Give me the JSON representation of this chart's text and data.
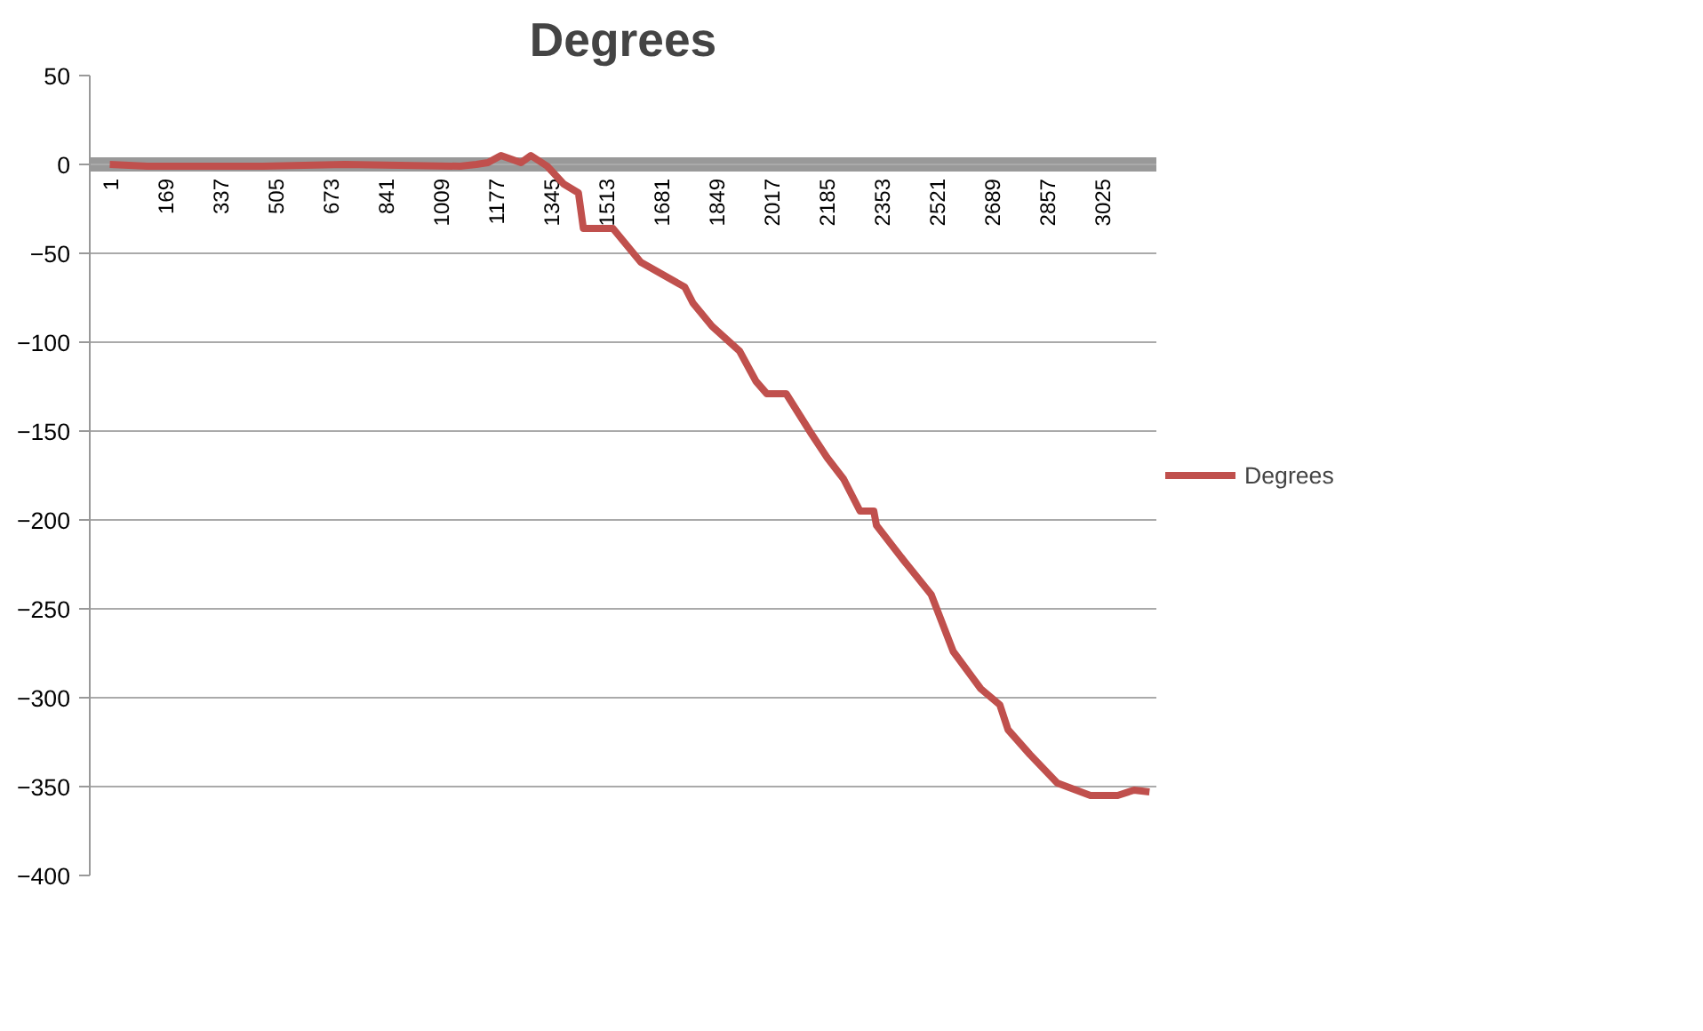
{
  "chart_data": {
    "type": "line",
    "title": "Degrees",
    "x": [
      1,
      116,
      216,
      467,
      717,
      1068,
      1118,
      1153,
      1193,
      1254,
      1284,
      1334,
      1384,
      1429,
      1444,
      1534,
      1619,
      1753,
      1778,
      1836,
      1920,
      1970,
      2003,
      2062,
      2137,
      2187,
      2237,
      2287,
      2329,
      2337,
      2421,
      2504,
      2571,
      2655,
      2713,
      2738,
      2805,
      2888,
      2989,
      3072,
      3122,
      3169
    ],
    "series": [
      {
        "name": "Degrees",
        "color": "#c0504d",
        "values": [
          0,
          -1,
          -1,
          -1,
          0,
          -1,
          0,
          1,
          5,
          1,
          5,
          -1,
          -11,
          -16,
          -36,
          -36,
          -55,
          -69,
          -78,
          -91,
          -105,
          -122,
          -129,
          -129,
          -151,
          -165,
          -177,
          -195,
          -195,
          -203,
          -223,
          -242,
          -274,
          -295,
          -304,
          -318,
          -332,
          -348,
          -355,
          -355,
          -352,
          -353
        ]
      }
    ],
    "xlim": [
      -60,
      3190
    ],
    "xticks": [
      1,
      169,
      337,
      505,
      673,
      841,
      1009,
      1177,
      1345,
      1513,
      1681,
      1849,
      2017,
      2185,
      2353,
      2521,
      2689,
      2857,
      3025
    ],
    "ylim": [
      -400,
      50
    ],
    "yticks": [
      -400,
      -350,
      -300,
      -250,
      -200,
      -150,
      -100,
      -50,
      0,
      50
    ],
    "grid": "y",
    "legend": "right",
    "marker": "none",
    "line_style": "solid"
  }
}
